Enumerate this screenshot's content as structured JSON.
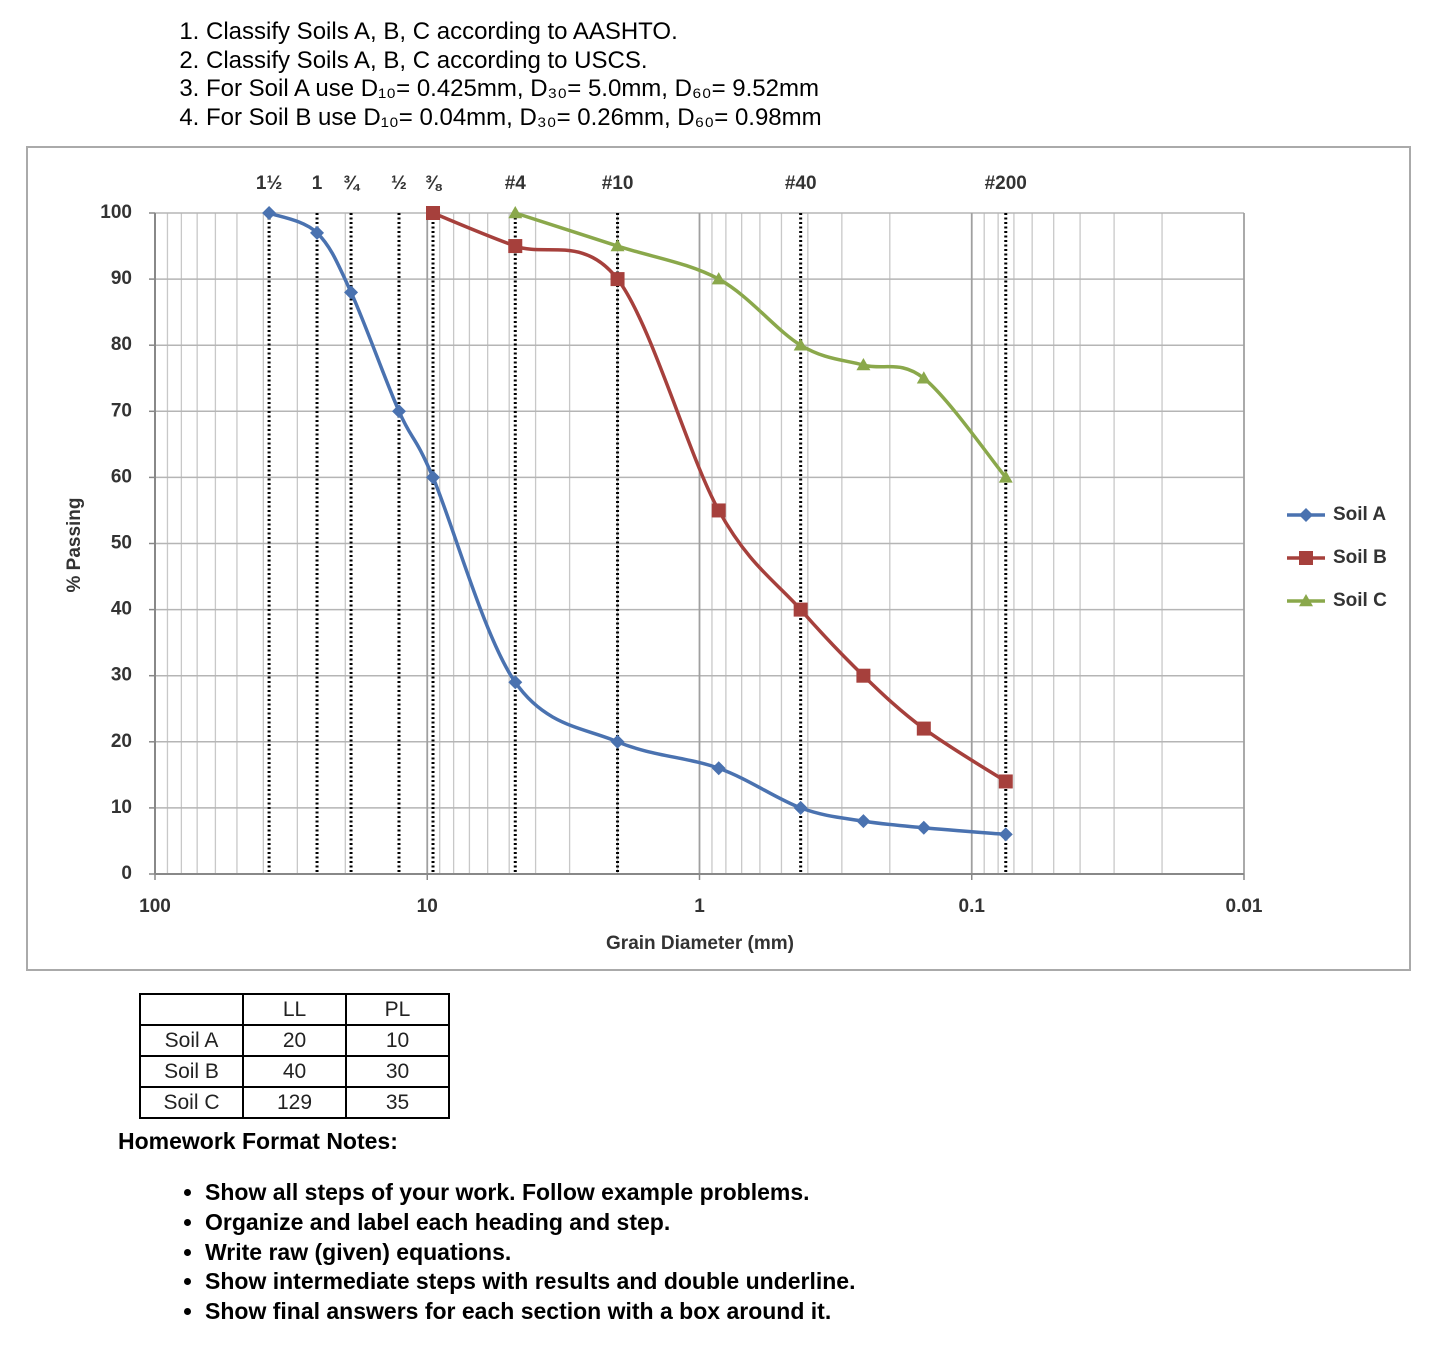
{
  "instructions": [
    "Classify Soils A, B, C according to AASHTO.",
    "Classify Soils A, B, C according to USCS.",
    "For Soil A use D₁₀= 0.425mm, D₃₀= 5.0mm, D₆₀= 9.52mm",
    "For Soil B use D₁₀= 0.04mm, D₃₀= 0.26mm, D₆₀= 0.98mm"
  ],
  "chart_data": {
    "type": "line",
    "xlabel": "Grain Diameter (mm)",
    "ylabel": "% Passing",
    "xscale": "log",
    "xlim": [
      100,
      0.01
    ],
    "xticks": [
      100,
      10,
      1,
      0.1,
      0.01
    ],
    "ylim": [
      0,
      100
    ],
    "yticks": [
      0,
      10,
      20,
      30,
      40,
      50,
      60,
      70,
      80,
      90,
      100
    ],
    "grid": true,
    "legend": "right",
    "sieves": [
      {
        "label": "1½",
        "x": 38.1
      },
      {
        "label": "1",
        "x": 25.4
      },
      {
        "label": "¾",
        "x": 19.05
      },
      {
        "label": "½",
        "x": 12.7
      },
      {
        "label": "⅜",
        "x": 9.525
      },
      {
        "label": "#4",
        "x": 4.75
      },
      {
        "label": "#10",
        "x": 2.0
      },
      {
        "label": "#40",
        "x": 0.425
      },
      {
        "label": "#200",
        "x": 0.075
      }
    ],
    "series": [
      {
        "name": "Soil A",
        "color": "#4a72b0",
        "marker": "diamond",
        "x": [
          38.1,
          25.4,
          19.05,
          12.7,
          9.525,
          4.75,
          2.0,
          0.85,
          0.425,
          0.25,
          0.15,
          0.075
        ],
        "values": [
          100,
          97,
          88,
          70,
          60,
          29,
          20,
          16,
          10,
          8,
          7,
          6
        ]
      },
      {
        "name": "Soil B",
        "color": "#a6403c",
        "marker": "square",
        "x": [
          9.525,
          4.75,
          2.0,
          0.85,
          0.425,
          0.25,
          0.15,
          0.075
        ],
        "values": [
          100,
          95,
          90,
          55,
          40,
          30,
          22,
          14
        ]
      },
      {
        "name": "Soil C",
        "color": "#8aa84b",
        "marker": "triangle",
        "x": [
          4.75,
          2.0,
          0.85,
          0.425,
          0.25,
          0.15,
          0.075
        ],
        "values": [
          100,
          95,
          90,
          80,
          77,
          75,
          60
        ]
      }
    ]
  },
  "table": {
    "columns": [
      "LL",
      "PL"
    ],
    "rows": [
      [
        "Soil A",
        20,
        10
      ],
      [
        "Soil B",
        40,
        30
      ],
      [
        "Soil C",
        129,
        35
      ]
    ]
  },
  "notes_title": "Homework Format Notes:",
  "notes": [
    "Show all steps of your work.  Follow example problems.",
    "Organize and label each heading and step.",
    "Write raw (given) equations.",
    "Show intermediate steps with results and double underline.",
    "Show final answers for each section with a box around it."
  ]
}
